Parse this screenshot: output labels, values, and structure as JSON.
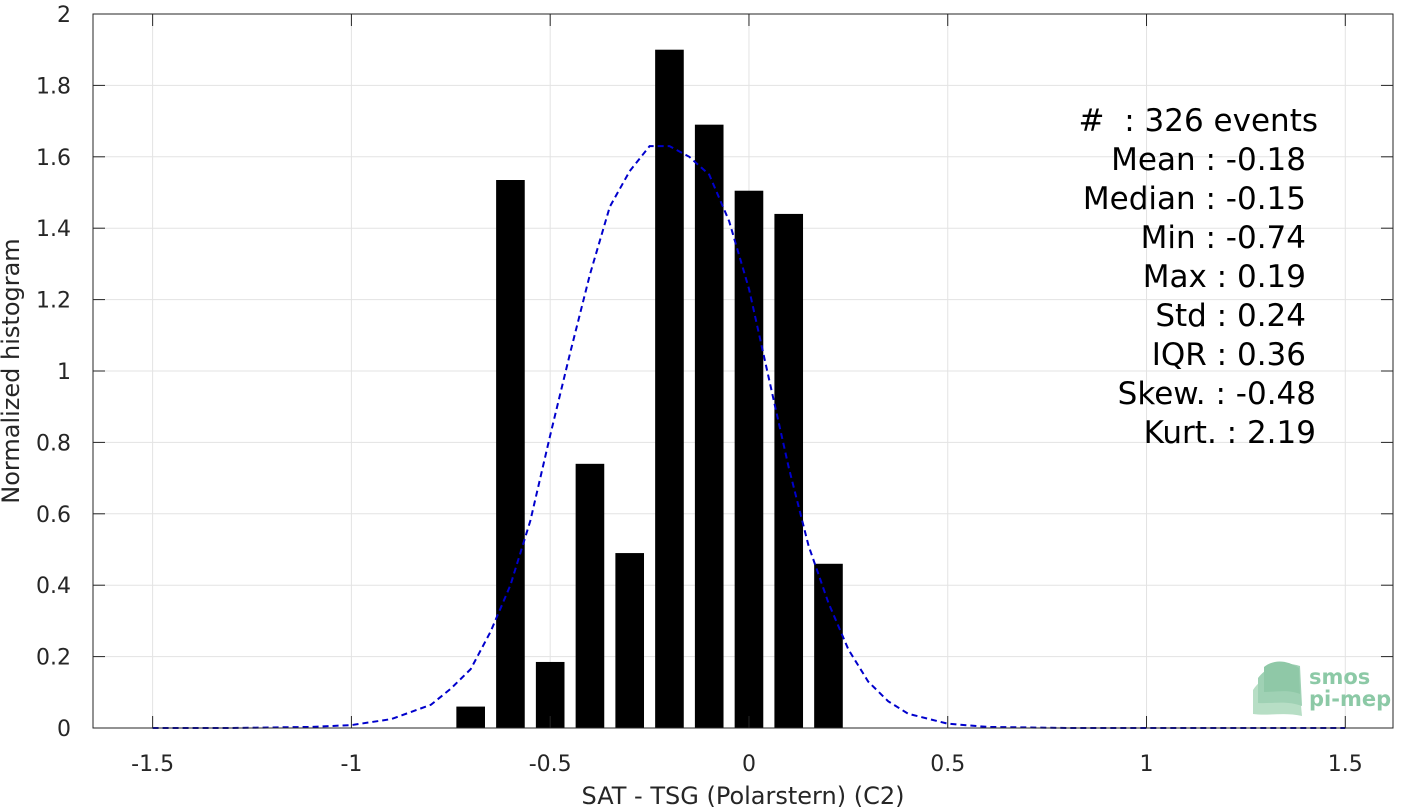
{
  "chart_data": {
    "type": "bar",
    "xlabel": "SAT - TSG (Polarstern) (C2)",
    "ylabel": "Normalized histogram",
    "xlim": [
      -1.65,
      1.62
    ],
    "ylim": [
      0,
      2
    ],
    "xticks": [
      -1.5,
      -1,
      -0.5,
      0,
      0.5,
      1,
      1.5
    ],
    "xtick_labels": [
      "-1.5",
      "-1",
      "-0.5",
      "0",
      "0.5",
      "1",
      "1.5"
    ],
    "yticks": [
      0,
      0.2,
      0.4,
      0.6,
      0.8,
      1,
      1.2,
      1.4,
      1.6,
      1.8,
      2
    ],
    "ytick_labels": [
      "0",
      "0.2",
      "0.4",
      "0.6",
      "0.8",
      "1",
      "1.2",
      "1.4",
      "1.6",
      "1.8",
      "2"
    ],
    "grid": true,
    "bar_width": 0.072,
    "bar_color": "#000000",
    "series": [
      {
        "type": "bar",
        "x": [
          -0.7,
          -0.6,
          -0.5,
          -0.4,
          -0.3,
          -0.2,
          -0.1,
          0.0,
          0.1,
          0.2
        ],
        "values": [
          0.06,
          1.535,
          0.185,
          0.74,
          0.49,
          1.9,
          1.69,
          1.505,
          1.44,
          0.46
        ]
      },
      {
        "type": "line",
        "style": "dashed",
        "color": "#0000cc",
        "x": [
          -1.5,
          -1.3,
          -1.1,
          -1.0,
          -0.9,
          -0.8,
          -0.75,
          -0.7,
          -0.65,
          -0.6,
          -0.55,
          -0.5,
          -0.45,
          -0.4,
          -0.35,
          -0.3,
          -0.25,
          -0.2,
          -0.15,
          -0.1,
          -0.05,
          0.0,
          0.05,
          0.1,
          0.15,
          0.2,
          0.25,
          0.3,
          0.35,
          0.4,
          0.5,
          0.6,
          0.8,
          1.0,
          1.5
        ],
        "y": [
          0.0,
          0.0,
          0.003,
          0.008,
          0.025,
          0.065,
          0.11,
          0.165,
          0.27,
          0.4,
          0.58,
          0.82,
          1.05,
          1.27,
          1.46,
          1.56,
          1.63,
          1.63,
          1.6,
          1.55,
          1.42,
          1.23,
          0.98,
          0.73,
          0.51,
          0.35,
          0.22,
          0.13,
          0.075,
          0.04,
          0.012,
          0.003,
          0.0,
          0.0,
          0.0
        ]
      }
    ],
    "annotations": [
      "#  : 326 events",
      "Mean : -0.18",
      "Median : -0.15",
      "Min : -0.74",
      "Max : 0.19",
      "Std : 0.24",
      "IQR : 0.36",
      "Skew. : -0.48",
      "Kurt. : 2.19"
    ]
  },
  "logo": {
    "line1": "smos",
    "line2": "pi-mep",
    "color": "#8cc9a6"
  }
}
